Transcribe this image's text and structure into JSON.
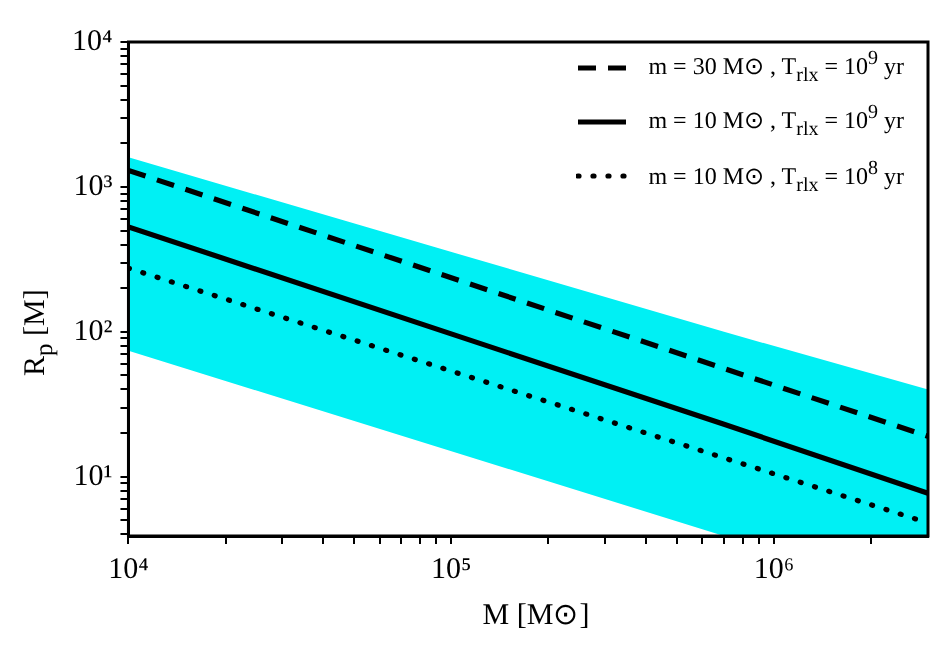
{
  "chart_data": {
    "type": "line",
    "xlabel": "M [M⊙]",
    "ylabel": "R$_{p}$ [M]",
    "log": "xy",
    "grid": false,
    "legend": "top right",
    "marker": "none",
    "xlim": [
      10000,
      3000000
    ],
    "ylim": [
      3.9,
      10000
    ],
    "xticks": [
      {
        "value": 10000,
        "label": "10⁴"
      },
      {
        "value": 20000,
        "label": null
      },
      {
        "value": 30000,
        "label": null
      },
      {
        "value": 40000,
        "label": null
      },
      {
        "value": 50000,
        "label": null
      },
      {
        "value": 60000,
        "label": null
      },
      {
        "value": 70000,
        "label": null
      },
      {
        "value": 80000,
        "label": null
      },
      {
        "value": 90000,
        "label": null
      },
      {
        "value": 100000,
        "label": "10⁵"
      },
      {
        "value": 200000,
        "label": null
      },
      {
        "value": 300000,
        "label": null
      },
      {
        "value": 400000,
        "label": null
      },
      {
        "value": 500000,
        "label": null
      },
      {
        "value": 600000,
        "label": null
      },
      {
        "value": 700000,
        "label": null
      },
      {
        "value": 800000,
        "label": null
      },
      {
        "value": 900000,
        "label": null
      },
      {
        "value": 1000000,
        "label": "10⁶"
      },
      {
        "value": 2000000,
        "label": null
      }
    ],
    "yticks": [
      {
        "value": 4,
        "label": null
      },
      {
        "value": 5,
        "label": null
      },
      {
        "value": 6,
        "label": null
      },
      {
        "value": 7,
        "label": null
      },
      {
        "value": 8,
        "label": null
      },
      {
        "value": 9,
        "label": null
      },
      {
        "value": 10,
        "label": "10¹"
      },
      {
        "value": 20,
        "label": null
      },
      {
        "value": 30,
        "label": null
      },
      {
        "value": 40,
        "label": null
      },
      {
        "value": 50,
        "label": null
      },
      {
        "value": 60,
        "label": null
      },
      {
        "value": 70,
        "label": null
      },
      {
        "value": 80,
        "label": null
      },
      {
        "value": 90,
        "label": null
      },
      {
        "value": 100,
        "label": "10²"
      },
      {
        "value": 200,
        "label": null
      },
      {
        "value": 300,
        "label": null
      },
      {
        "value": 400,
        "label": null
      },
      {
        "value": 500,
        "label": null
      },
      {
        "value": 600,
        "label": null
      },
      {
        "value": 700,
        "label": null
      },
      {
        "value": 800,
        "label": null
      },
      {
        "value": 900,
        "label": null
      },
      {
        "value": 1000,
        "label": "10³"
      },
      {
        "value": 2000,
        "label": null
      },
      {
        "value": 3000,
        "label": null
      },
      {
        "value": 4000,
        "label": null
      },
      {
        "value": 5000,
        "label": null
      },
      {
        "value": 6000,
        "label": null
      },
      {
        "value": 7000,
        "label": null
      },
      {
        "value": 8000,
        "label": null
      },
      {
        "value": 9000,
        "label": null
      },
      {
        "value": 10000,
        "label": "10⁴"
      }
    ],
    "series": [
      {
        "name": "m = 30 M⊙ , T$_{rlx}$ = 10$^{9}$ yr",
        "color": "#000000",
        "line_style": "dashed",
        "x": [
          10000,
          3000000
        ],
        "values": [
          1300,
          19
        ]
      },
      {
        "name": "m = 10 M⊙ , T$_{rlx}$ = 10$^{9}$ yr",
        "color": "#000000",
        "line_style": "solid",
        "x": [
          10000,
          700000,
          3000000
        ],
        "values": [
          530,
          23,
          7.7
        ],
        "upper": [
          1600,
          100,
          40
        ],
        "lower": [
          74,
          3.9,
          3.9
        ]
      },
      {
        "name": "m = 10 M⊙ , T$_{rlx}$ = 10$^{8}$ yr",
        "color": "#000000",
        "line_style": "dotted",
        "x": [
          10000,
          3000000
        ],
        "values": [
          275,
          4.8
        ]
      }
    ]
  }
}
